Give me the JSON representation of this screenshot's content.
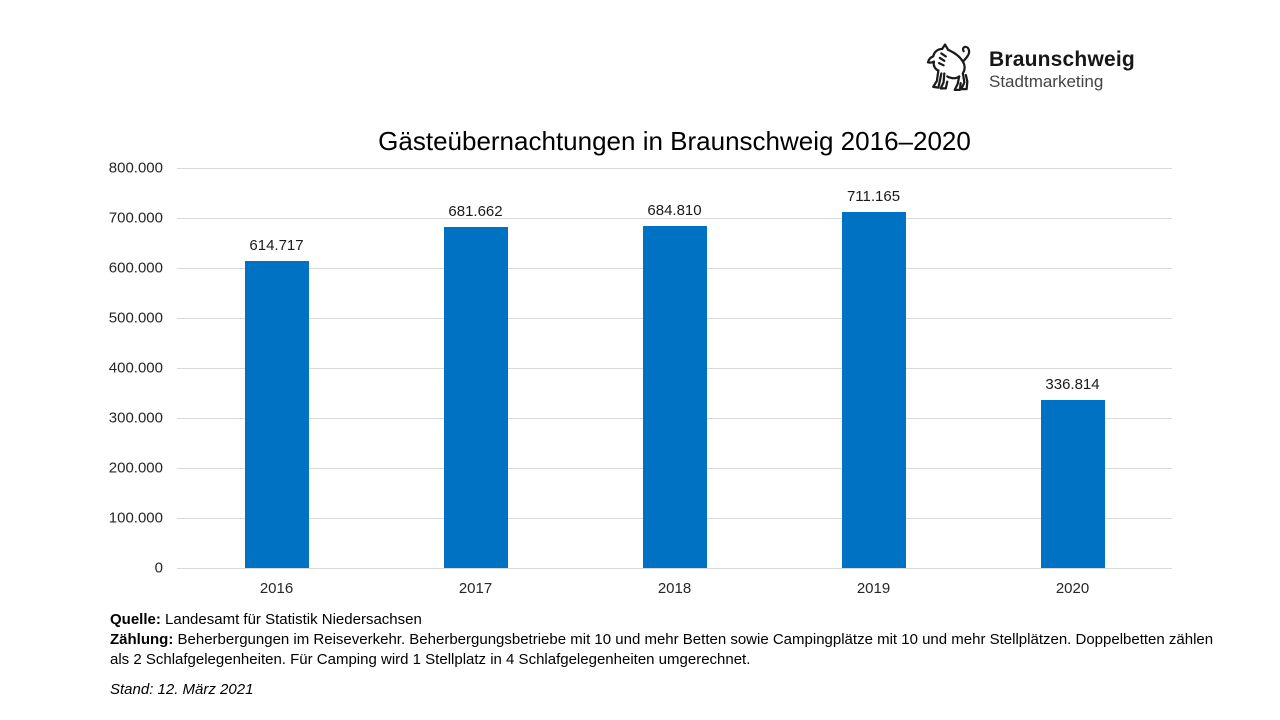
{
  "logo": {
    "brand": "Braunschweig",
    "sub": "Stadtmarketing"
  },
  "chart_data": {
    "type": "bar",
    "title": "Gästeübernachtungen in Braunschweig 2016–2020",
    "categories": [
      "2016",
      "2017",
      "2018",
      "2019",
      "2020"
    ],
    "values": [
      614717,
      681662,
      684810,
      711165,
      336814
    ],
    "value_labels": [
      "614.717",
      "681.662",
      "684.810",
      "711.165",
      "336.814"
    ],
    "xlabel": "",
    "ylabel": "",
    "ylim": [
      0,
      800000
    ],
    "ytick_step": 100000,
    "ytick_labels": [
      "0",
      "100.000",
      "200.000",
      "300.000",
      "400.000",
      "500.000",
      "600.000",
      "700.000",
      "800.000"
    ],
    "grid": true,
    "legend": false,
    "bar_color": "#0072C4",
    "gridline_color": "#D9D9D9"
  },
  "footer": {
    "source_label": "Quelle:",
    "source_text": "Landesamt für Statistik Niedersachsen",
    "counting_label": "Zählung:",
    "counting_text": "Beherbergungen im Reiseverkehr. Beherbergungsbetriebe mit 10 und mehr Betten sowie Campingplätze mit 10 und mehr Stellplätzen. Doppelbetten zählen als 2 Schlafgelegenheiten. Für Camping wird 1 Stellplatz in 4 Schlafgelegenheiten umgerechnet.",
    "stand": "Stand: 12. März 2021"
  }
}
